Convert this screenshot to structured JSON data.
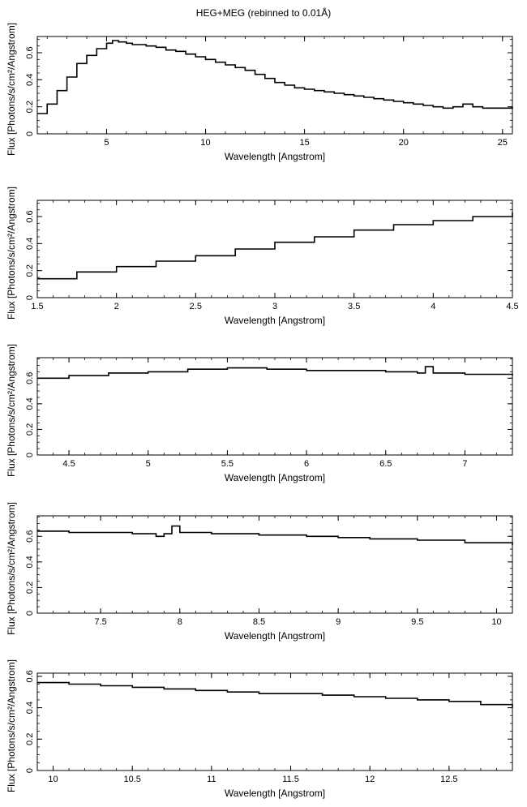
{
  "figure": {
    "title": "HEG+MEG (rebinned to 0.01Å)"
  },
  "chart_data": [
    {
      "type": "line",
      "xlabel": "Wavelength [Angstrom]",
      "ylabel": "Flux [Photons/s/cm²/Angstrom]",
      "xlim": [
        1.5,
        25.5
      ],
      "ylim": [
        0,
        0.72
      ],
      "xticks": [
        5,
        10,
        15,
        20,
        25
      ],
      "xtick_labels": [
        "5",
        "10",
        "15",
        "20",
        "25"
      ],
      "yticks": [
        0,
        0.2,
        0.4,
        0.6
      ],
      "ytick_labels": [
        "0",
        "0.2",
        "0.4",
        "0.6"
      ],
      "series": [
        {
          "style": "steps",
          "x": [
            1.5,
            2,
            2.5,
            3,
            3.5,
            4,
            4.5,
            5,
            5.3,
            5.6,
            6,
            6.3,
            6.7,
            7,
            7.5,
            8,
            8.5,
            9,
            9.5,
            10,
            10.5,
            11,
            11.5,
            12,
            12.5,
            13,
            13.5,
            14,
            14.5,
            15,
            15.5,
            16,
            16.5,
            17,
            17.5,
            18,
            18.5,
            19,
            19.5,
            20,
            20.5,
            21,
            21.5,
            22,
            22.5,
            23,
            23.5,
            24,
            24.5,
            25,
            25.5
          ],
          "y": [
            0.15,
            0.22,
            0.32,
            0.42,
            0.52,
            0.58,
            0.63,
            0.67,
            0.69,
            0.68,
            0.67,
            0.66,
            0.66,
            0.65,
            0.64,
            0.62,
            0.61,
            0.59,
            0.57,
            0.55,
            0.53,
            0.51,
            0.49,
            0.47,
            0.44,
            0.41,
            0.38,
            0.36,
            0.34,
            0.33,
            0.32,
            0.31,
            0.3,
            0.29,
            0.28,
            0.27,
            0.26,
            0.25,
            0.24,
            0.23,
            0.22,
            0.21,
            0.2,
            0.19,
            0.2,
            0.22,
            0.2,
            0.19,
            0.19,
            0.19,
            0.2
          ]
        }
      ]
    },
    {
      "type": "line",
      "xlabel": "Wavelength [Angstrom]",
      "ylabel": "Flux [Photons/s/cm²/Angstrom]",
      "xlim": [
        1.5,
        4.5
      ],
      "ylim": [
        0,
        0.72
      ],
      "xticks": [
        1.5,
        2,
        2.5,
        3,
        3.5,
        4,
        4.5
      ],
      "xtick_labels": [
        "1.5",
        "2",
        "2.5",
        "3",
        "3.5",
        "4",
        "4.5"
      ],
      "yticks": [
        0,
        0.2,
        0.4,
        0.6
      ],
      "ytick_labels": [
        "0",
        "0.2",
        "0.4",
        "0.6"
      ],
      "series": [
        {
          "style": "steps",
          "x": [
            1.5,
            1.75,
            2,
            2.25,
            2.5,
            2.75,
            3,
            3.25,
            3.5,
            3.75,
            4,
            4.25,
            4.5
          ],
          "y": [
            0.14,
            0.19,
            0.23,
            0.27,
            0.31,
            0.36,
            0.41,
            0.45,
            0.5,
            0.54,
            0.57,
            0.6,
            0.63
          ]
        }
      ]
    },
    {
      "type": "line",
      "xlabel": "Wavelength [Angstrom]",
      "ylabel": "Flux [Photons/s/cm²/Angstrom]",
      "xlim": [
        4.3,
        7.3
      ],
      "ylim": [
        0,
        0.76
      ],
      "xticks": [
        4.5,
        5,
        5.5,
        6,
        6.5,
        7
      ],
      "xtick_labels": [
        "4.5",
        "5",
        "5.5",
        "6",
        "6.5",
        "7"
      ],
      "yticks": [
        0,
        0.2,
        0.4,
        0.6
      ],
      "ytick_labels": [
        "0",
        "0.2",
        "0.4",
        "0.6"
      ],
      "series": [
        {
          "style": "steps",
          "x": [
            4.3,
            4.5,
            4.75,
            5,
            5.25,
            5.5,
            5.75,
            6,
            6.25,
            6.5,
            6.7,
            6.75,
            6.8,
            7,
            7.3
          ],
          "y": [
            0.6,
            0.62,
            0.64,
            0.65,
            0.67,
            0.68,
            0.67,
            0.66,
            0.66,
            0.65,
            0.64,
            0.69,
            0.64,
            0.63,
            0.62
          ]
        }
      ]
    },
    {
      "type": "line",
      "xlabel": "Wavelength [Angstrom]",
      "ylabel": "Flux [Photons/s/cm²/Angstrom]",
      "xlim": [
        7.1,
        10.1
      ],
      "ylim": [
        0,
        0.76
      ],
      "xticks": [
        7.5,
        8,
        8.5,
        9,
        9.5,
        10
      ],
      "xtick_labels": [
        "7.5",
        "8",
        "8.5",
        "9",
        "9.5",
        "10"
      ],
      "yticks": [
        0,
        0.2,
        0.4,
        0.6
      ],
      "ytick_labels": [
        "0",
        "0.2",
        "0.4",
        "0.6"
      ],
      "series": [
        {
          "style": "steps",
          "x": [
            7.1,
            7.3,
            7.5,
            7.7,
            7.85,
            7.9,
            7.95,
            8,
            8.2,
            8.5,
            8.8,
            9,
            9.2,
            9.5,
            9.8,
            10.1
          ],
          "y": [
            0.64,
            0.63,
            0.63,
            0.62,
            0.6,
            0.62,
            0.68,
            0.63,
            0.62,
            0.61,
            0.6,
            0.59,
            0.58,
            0.57,
            0.55,
            0.53
          ]
        }
      ]
    },
    {
      "type": "line",
      "xlabel": "Wavelength [Angstrom]",
      "ylabel": "Flux [Photons/s/cm²/Angstrom]",
      "xlim": [
        9.9,
        12.9
      ],
      "ylim": [
        0,
        0.62
      ],
      "xticks": [
        10,
        10.5,
        11,
        11.5,
        12,
        12.5
      ],
      "xtick_labels": [
        "10",
        "10.5",
        "11",
        "11.5",
        "12",
        "12.5"
      ],
      "yticks": [
        0,
        0.2,
        0.4,
        0.6
      ],
      "ytick_labels": [
        "0",
        "0.2",
        "0.4",
        "0.6"
      ],
      "series": [
        {
          "style": "steps",
          "x": [
            9.9,
            10.1,
            10.3,
            10.5,
            10.7,
            10.9,
            11.1,
            11.3,
            11.5,
            11.7,
            11.9,
            12.1,
            12.3,
            12.5,
            12.7,
            12.9
          ],
          "y": [
            0.56,
            0.55,
            0.54,
            0.53,
            0.52,
            0.51,
            0.5,
            0.49,
            0.49,
            0.48,
            0.47,
            0.46,
            0.45,
            0.44,
            0.42,
            0.4
          ]
        }
      ]
    }
  ]
}
